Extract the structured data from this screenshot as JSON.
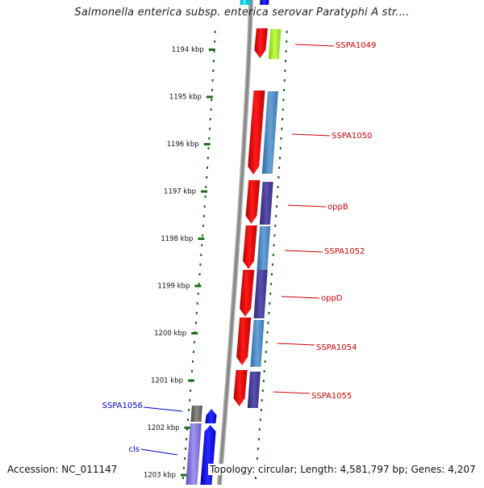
{
  "title": "Salmonella enterica subsp. enterica serovar Paratyphi A str....",
  "footer": {
    "accession": "Accession: NC_011147",
    "topology": "Topology: circular; Length: 4,581,797 bp; Genes: 4,207"
  },
  "colors": {
    "ruler_tick": "#1e6e1e",
    "ruler_text": "#111111",
    "backbone": "#888888",
    "gene_red": "#ff0000",
    "gene_green": "#a8ee2a",
    "gene_blue": "#4a86c0",
    "gene_purple": "#4a3f99",
    "gene_lavender": "#8070d8",
    "gene_gray": "#666666",
    "gene_bright_blue": "#0000ee",
    "gene_cyan": "#00c8e0",
    "label_red": "#cc0000",
    "label_blue": "#0000cc"
  },
  "ruler": {
    "unit": "kbp",
    "ticks": [
      "1194 kbp",
      "1195 kbp",
      "1196 kbp",
      "1197 kbp",
      "1198 kbp",
      "1199 kbp",
      "1200 kbp",
      "1201 kbp",
      "1202 kbp",
      "1203 kbp"
    ]
  },
  "gene_labels": [
    {
      "text": "SSPA1049",
      "strand": "forward"
    },
    {
      "text": "SSPA1050",
      "strand": "forward"
    },
    {
      "text": "oppB",
      "strand": "forward"
    },
    {
      "text": "SSPA1052",
      "strand": "forward"
    },
    {
      "text": "oppD",
      "strand": "forward"
    },
    {
      "text": "SSPA1054",
      "strand": "forward"
    },
    {
      "text": "SSPA1055",
      "strand": "forward"
    },
    {
      "text": "SSPA1056",
      "strand": "reverse"
    },
    {
      "text": "cls",
      "strand": "reverse"
    }
  ]
}
